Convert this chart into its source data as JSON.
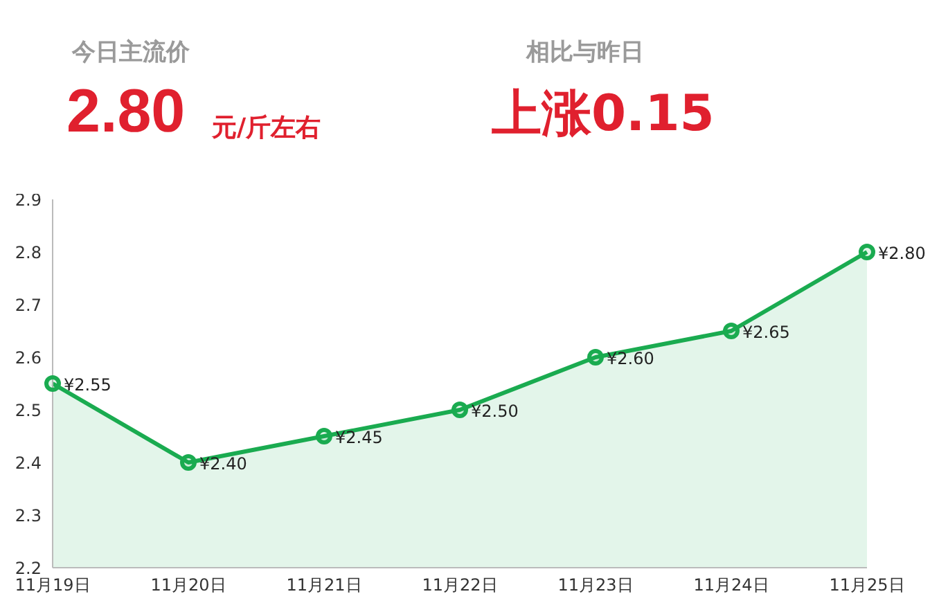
{
  "chart_data": {
    "type": "area",
    "annotations": [
      "今日主流价",
      "2.80",
      "元/斤左右",
      "相比与昨日",
      "上涨0.15"
    ],
    "categories": [
      "11月19日",
      "11月20日",
      "11月21日",
      "11月22日",
      "11月23日",
      "11月24日",
      "11月25日"
    ],
    "series": [
      {
        "color": "#1aab50",
        "values": [
          2.55,
          2.4,
          2.45,
          2.5,
          2.6,
          2.65,
          2.8
        ],
        "value_labels": [
          "¥2.55",
          "¥2.40",
          "¥2.45",
          "¥2.50",
          "¥2.60",
          "¥2.65",
          "¥2.80"
        ]
      }
    ],
    "ylim": [
      2.2,
      2.9
    ],
    "yticks": [
      2.2,
      2.3,
      2.4,
      2.5,
      2.6,
      2.7,
      2.8,
      2.9
    ],
    "marker": "circle",
    "line_style": "solid"
  }
}
